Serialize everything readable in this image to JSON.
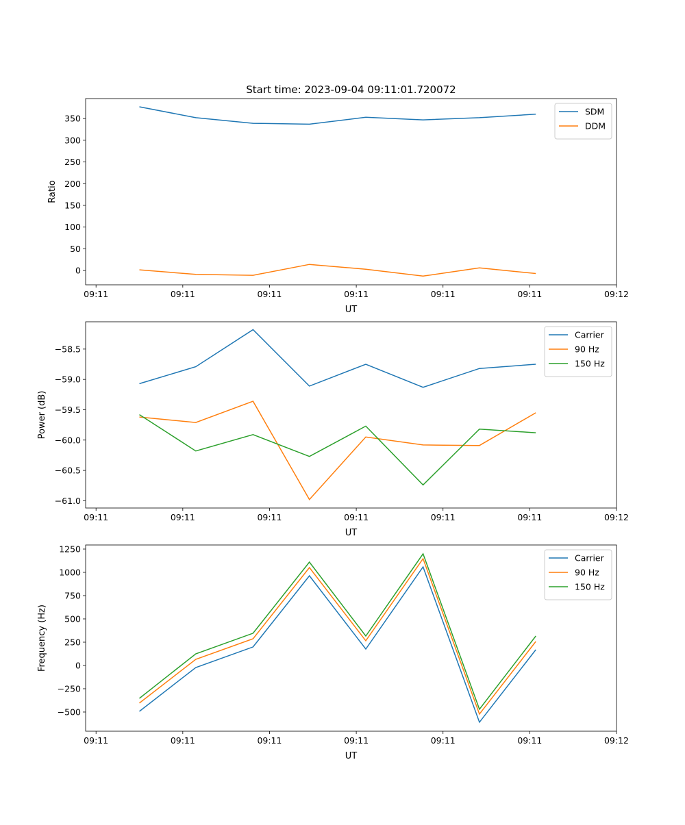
{
  "chart_data": [
    {
      "type": "line",
      "title": "Start time: 2023-09-04 09:11:01.720072",
      "xlabel": "UT",
      "ylabel": "Ratio",
      "x_unit": "seconds after 09:11:00",
      "x": [
        5.0,
        11.5,
        18.1,
        24.6,
        31.1,
        37.7,
        44.2,
        50.7
      ],
      "xlim": [
        -1.2,
        60
      ],
      "xticks": [
        0,
        10,
        20,
        30,
        40,
        50,
        60
      ],
      "xtick_labels": [
        "09:11",
        "09:11",
        "09:11",
        "09:11",
        "09:11",
        "09:11",
        "09:12"
      ],
      "ylim": [
        -33,
        396
      ],
      "yticks": [
        0,
        50,
        100,
        150,
        200,
        250,
        300,
        350
      ],
      "ytick_labels": [
        "0",
        "50",
        "100",
        "150",
        "200",
        "250",
        "300",
        "350"
      ],
      "legend": "top-right",
      "series": [
        {
          "name": "SDM",
          "color": "#1f77b4",
          "values": [
            377,
            352,
            339,
            337,
            353,
            347,
            352,
            360
          ]
        },
        {
          "name": "DDM",
          "color": "#ff7f0e",
          "values": [
            1.6,
            -9,
            -11,
            14,
            3,
            -13,
            6,
            -7
          ]
        }
      ]
    },
    {
      "type": "line",
      "title": "",
      "xlabel": "UT",
      "ylabel": "Power (dB)",
      "x_unit": "seconds after 09:11:00",
      "x": [
        5.0,
        11.5,
        18.1,
        24.6,
        31.1,
        37.7,
        44.2,
        50.7
      ],
      "xlim": [
        -1.2,
        60
      ],
      "xticks": [
        0,
        10,
        20,
        30,
        40,
        50,
        60
      ],
      "xtick_labels": [
        "09:11",
        "09:11",
        "09:11",
        "09:11",
        "09:11",
        "09:11",
        "09:12"
      ],
      "ylim": [
        -61.12,
        -58.05
      ],
      "yticks": [
        -61.0,
        -60.5,
        -60.0,
        -59.5,
        -59.0,
        -58.5
      ],
      "ytick_labels": [
        "−61.0",
        "−60.5",
        "−60.0",
        "−59.5",
        "−59.0",
        "−58.5"
      ],
      "legend": "top-right",
      "series": [
        {
          "name": "Carrier",
          "color": "#1f77b4",
          "values": [
            -59.07,
            -58.79,
            -58.18,
            -59.11,
            -58.75,
            -59.13,
            -58.82,
            -58.75
          ]
        },
        {
          "name": "90 Hz",
          "color": "#ff7f0e",
          "values": [
            -59.62,
            -59.71,
            -59.36,
            -60.98,
            -59.95,
            -60.08,
            -60.09,
            -59.55
          ]
        },
        {
          "name": "150 Hz",
          "color": "#2ca02c",
          "values": [
            -59.58,
            -60.18,
            -59.91,
            -60.27,
            -59.77,
            -60.74,
            -59.82,
            -59.88
          ]
        }
      ]
    },
    {
      "type": "line",
      "title": "",
      "xlabel": "UT",
      "ylabel": "Frequency (Hz)",
      "x_unit": "seconds after 09:11:00",
      "x": [
        5.0,
        11.5,
        18.1,
        24.6,
        31.1,
        37.7,
        44.2,
        50.7
      ],
      "xlim": [
        -1.2,
        60
      ],
      "xticks": [
        0,
        10,
        20,
        30,
        40,
        50,
        60
      ],
      "xtick_labels": [
        "09:11",
        "09:11",
        "09:11",
        "09:11",
        "09:11",
        "09:11",
        "09:12"
      ],
      "ylim": [
        -706,
        1294
      ],
      "yticks": [
        -500,
        -250,
        0,
        250,
        500,
        750,
        1000,
        1250
      ],
      "ytick_labels": [
        "−500",
        "−250",
        "0",
        "250",
        "500",
        "750",
        "1000",
        "1250"
      ],
      "legend": "top-right",
      "series": [
        {
          "name": "Carrier",
          "color": "#1f77b4",
          "values": [
            -493,
            -22,
            199,
            963,
            176,
            1059,
            -610,
            169
          ]
        },
        {
          "name": "90 Hz",
          "color": "#ff7f0e",
          "values": [
            -404,
            66,
            287,
            1051,
            265,
            1147,
            -522,
            257
          ]
        },
        {
          "name": "150 Hz",
          "color": "#2ca02c",
          "values": [
            -353,
            125,
            346,
            1110,
            316,
            1199,
            -470,
            316
          ]
        }
      ]
    }
  ]
}
